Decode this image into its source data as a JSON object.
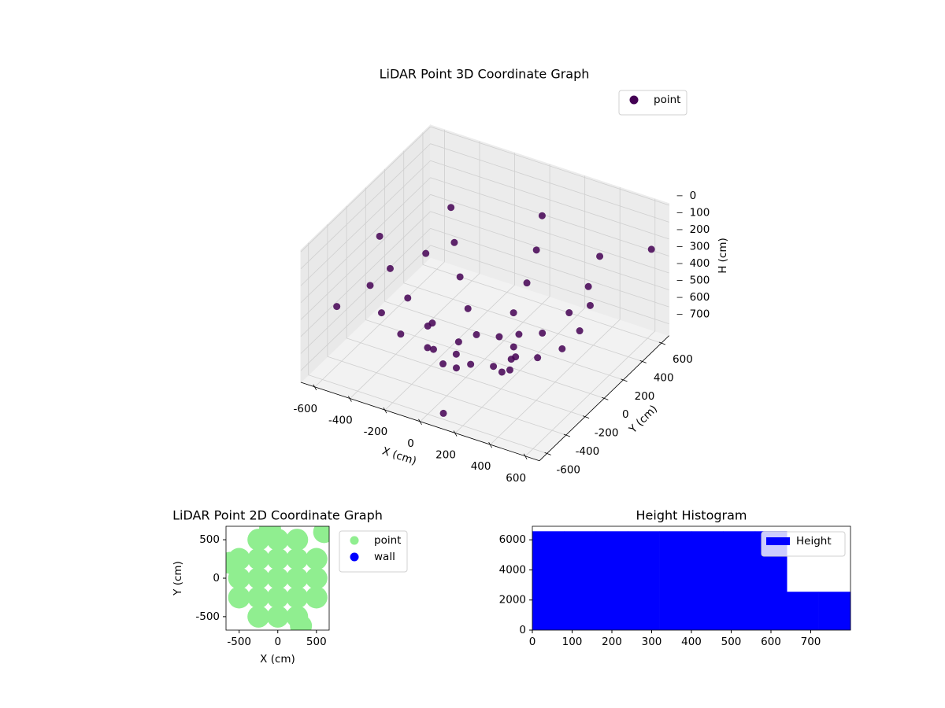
{
  "chart_data": [
    {
      "type": "scatter3d",
      "title": "LiDAR Point 3D Coordinate Graph",
      "xlabel": "X (cm)",
      "ylabel": "Y (cm)",
      "zlabel": "H (cm)",
      "xlim": [
        -680,
        680
      ],
      "ylim": [
        -680,
        680
      ],
      "zlim": [
        -10,
        770
      ],
      "z_inverted": true,
      "xticks": [
        -600,
        -400,
        -200,
        0,
        200,
        400,
        600
      ],
      "yticks": [
        -600,
        -400,
        -200,
        0,
        200,
        400,
        600
      ],
      "zticks": [
        0,
        100,
        200,
        300,
        400,
        500,
        600,
        700
      ],
      "grid": true,
      "legend": "upper right",
      "series": [
        {
          "name": "point",
          "color": "#440154",
          "x": [
            600,
            424,
            0,
            -424,
            -600,
            -424,
            0,
            424,
            540,
            382,
            0,
            -382,
            -540,
            -382,
            0,
            382,
            440,
            311,
            0,
            -311,
            -440,
            -311,
            0,
            311,
            300,
            212,
            0,
            -212,
            -300,
            -212,
            0,
            212,
            150,
            106,
            0,
            -106,
            -150,
            -106,
            0,
            106,
            -600,
            650,
            100,
            -500
          ],
          "y": [
            0,
            424,
            600,
            424,
            0,
            -424,
            -600,
            -424,
            0,
            382,
            540,
            382,
            0,
            -382,
            -540,
            -382,
            0,
            311,
            440,
            311,
            0,
            -311,
            -440,
            -311,
            0,
            212,
            300,
            212,
            0,
            -212,
            -300,
            -212,
            0,
            106,
            150,
            106,
            0,
            -106,
            -150,
            -106,
            -450,
            550,
            -620,
            300
          ],
          "z": [
            250,
            250,
            250,
            250,
            250,
            250,
            250,
            250,
            420,
            420,
            420,
            420,
            420,
            420,
            420,
            420,
            560,
            560,
            560,
            560,
            560,
            560,
            560,
            560,
            660,
            660,
            660,
            660,
            660,
            660,
            660,
            660,
            720,
            720,
            720,
            720,
            720,
            720,
            720,
            720,
            420,
            200,
            720,
            480
          ]
        }
      ]
    },
    {
      "type": "scatter",
      "title": "LiDAR Point 2D Coordinate Graph",
      "xlabel": "X (cm)",
      "ylabel": "Y (cm)",
      "xlim": [
        -670,
        665
      ],
      "ylim": [
        -675,
        675
      ],
      "xticks": [
        -500,
        0,
        500
      ],
      "yticks": [
        -500,
        0,
        500
      ],
      "legend": "outside upper right",
      "series": [
        {
          "name": "point",
          "color": "#90ee90",
          "x": [
            -500,
            -500,
            -500,
            -250,
            -250,
            -250,
            -250,
            -250,
            0,
            0,
            0,
            0,
            0,
            250,
            250,
            250,
            250,
            250,
            500,
            500,
            500,
            -620,
            600,
            -100,
            300
          ],
          "y": [
            -250,
            0,
            250,
            -500,
            -250,
            0,
            250,
            500,
            -500,
            -250,
            0,
            250,
            500,
            -500,
            -250,
            0,
            250,
            500,
            -250,
            0,
            250,
            200,
            600,
            640,
            -620
          ]
        },
        {
          "name": "wall",
          "color": "#0000ff",
          "x": [],
          "y": []
        }
      ]
    },
    {
      "type": "histogram",
      "title": "Height Histogram",
      "xlim": [
        0,
        800
      ],
      "ylim": [
        0,
        6900
      ],
      "xticks": [
        0,
        100,
        200,
        300,
        400,
        500,
        600,
        700
      ],
      "yticks": [
        0,
        2000,
        4000,
        6000
      ],
      "legend": "upper right",
      "series": [
        {
          "name": "Height",
          "color": "#0000ff",
          "bins": [
            0,
            80,
            160,
            240,
            320,
            400,
            480,
            560,
            640,
            720,
            800
          ],
          "values": [
            6570,
            6570,
            6570,
            6570,
            6570,
            6570,
            6570,
            6570,
            2550,
            2550
          ]
        }
      ]
    }
  ]
}
